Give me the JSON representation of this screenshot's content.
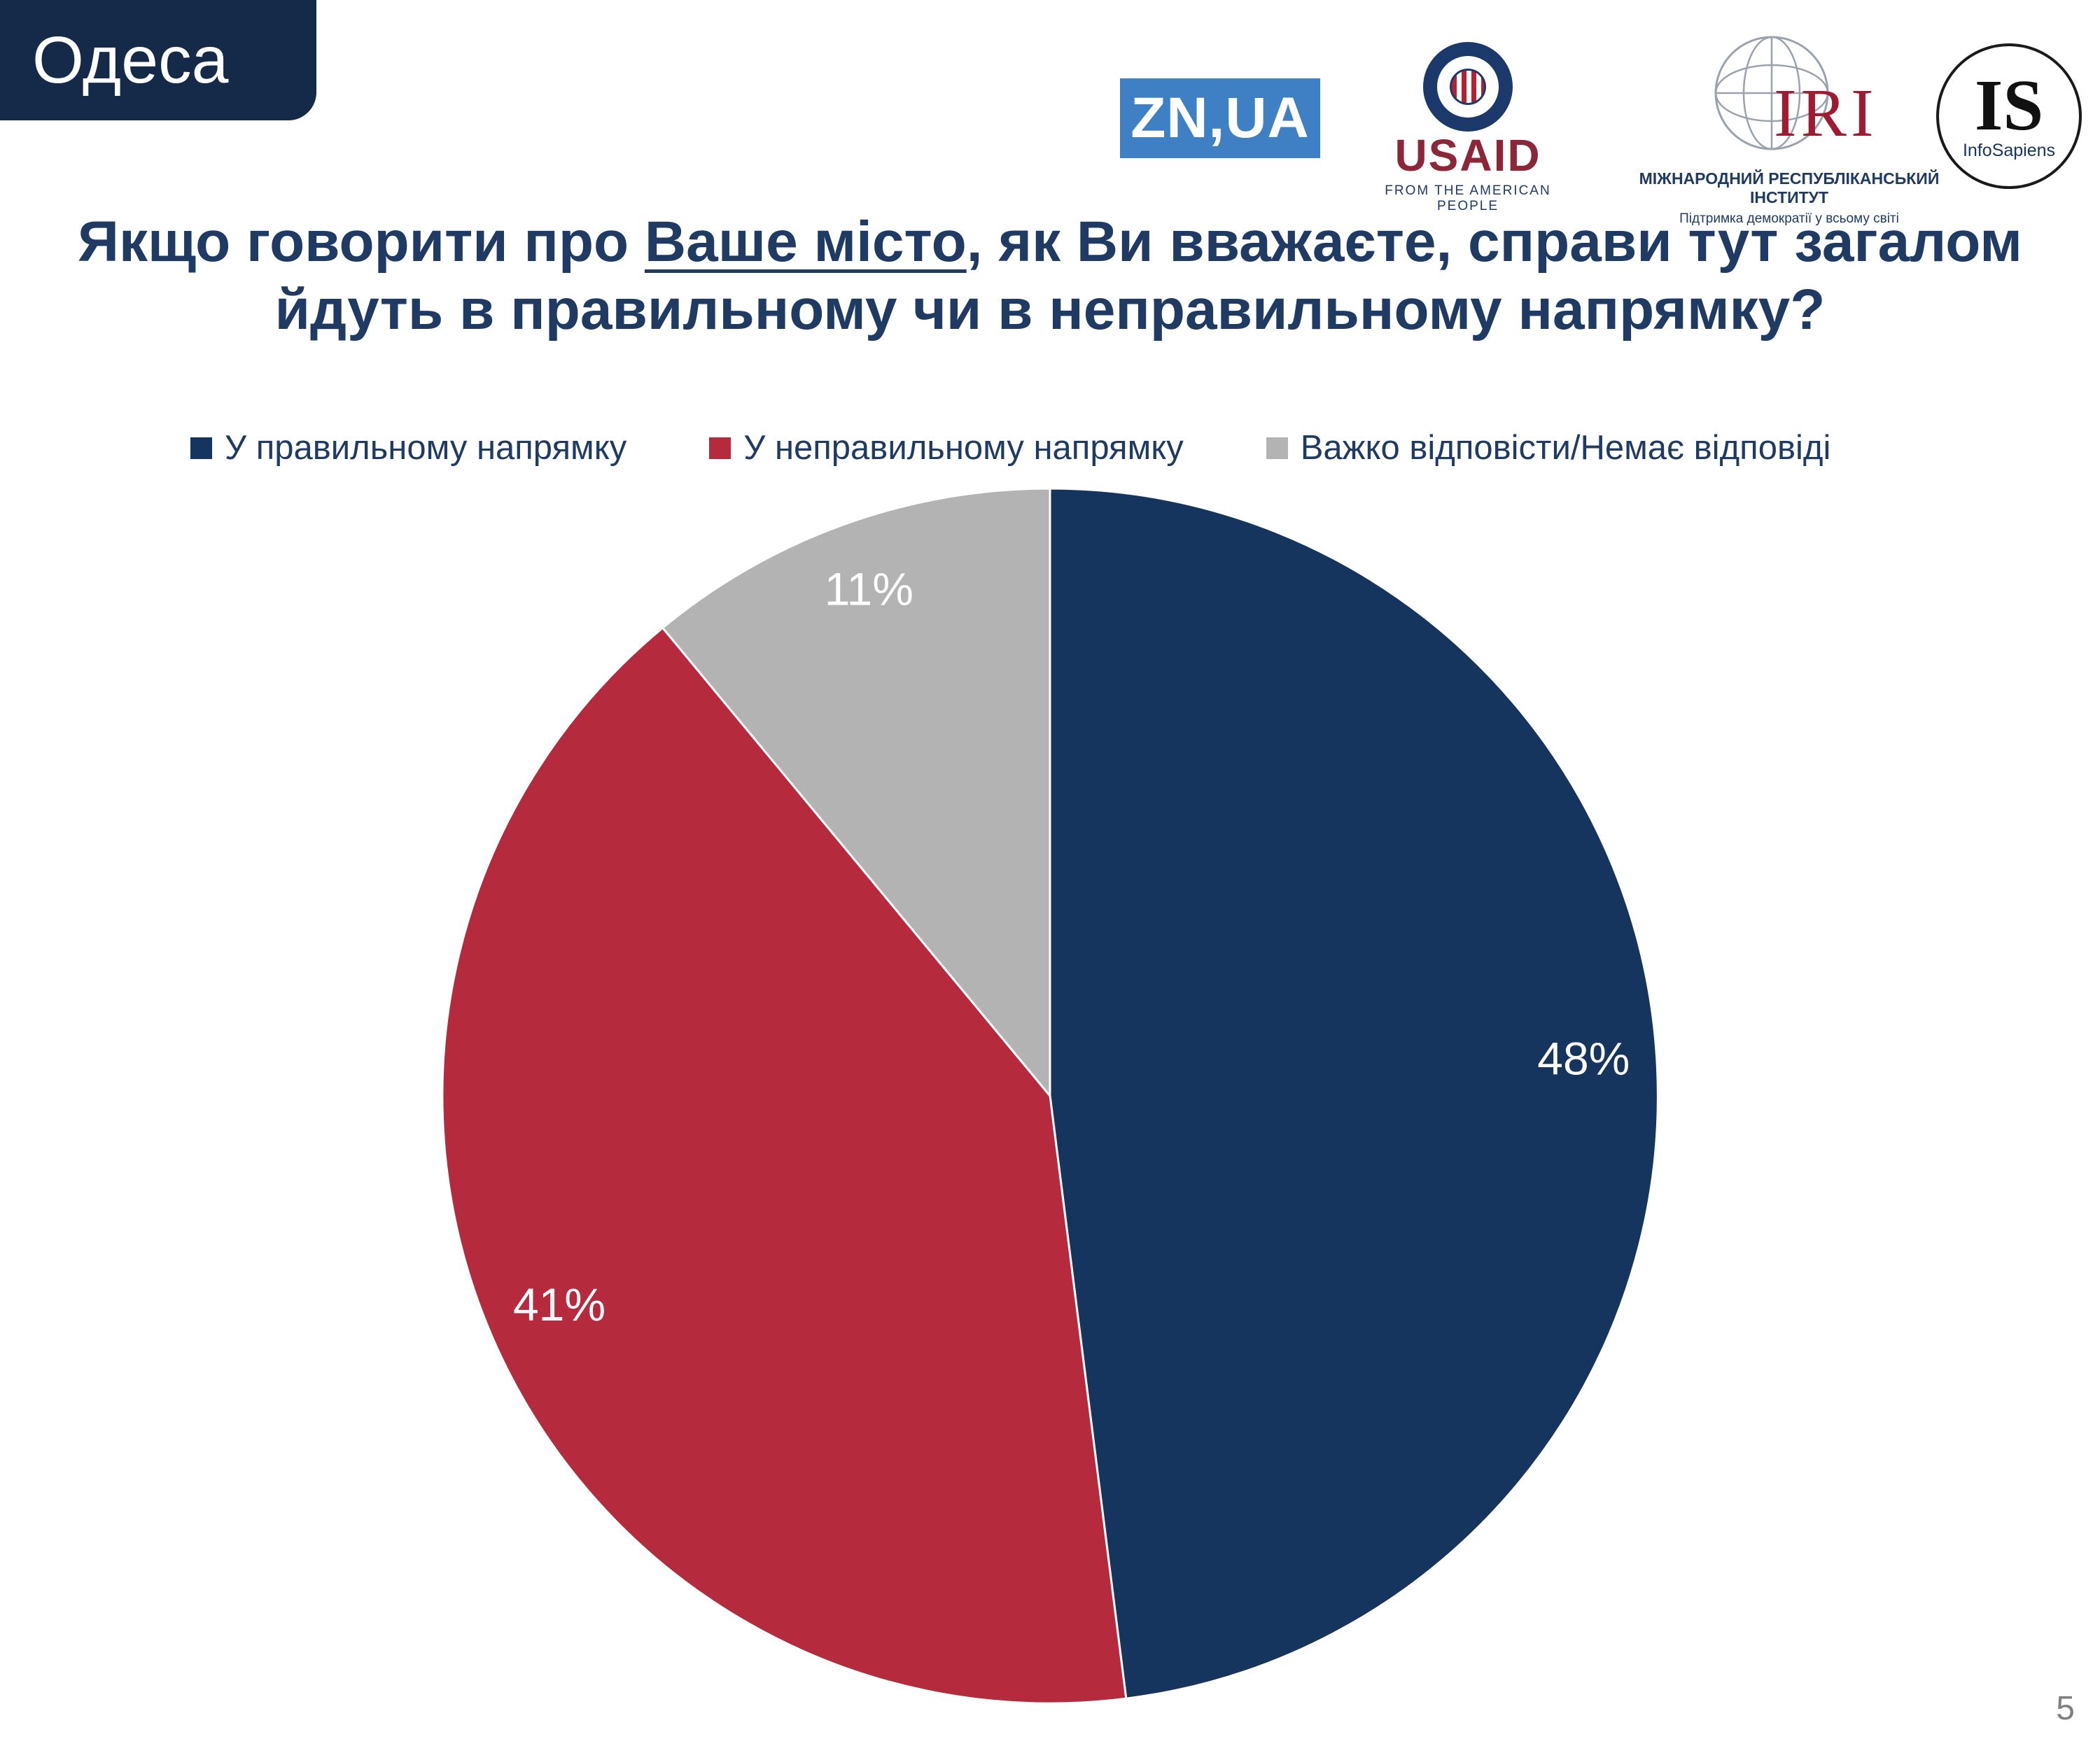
{
  "page": {
    "region_label": "Одеса",
    "page_number": "5"
  },
  "logos": {
    "znua": "ZN,UA",
    "usaid": {
      "name": "USAID",
      "tagline": "FROM THE AMERICAN PEOPLE"
    },
    "iri": {
      "name": "IRI",
      "line1": "МІЖНАРОДНИЙ РЕСПУБЛІКАНСЬКИЙ ІНСТИТУТ",
      "line2": "Підтримка демократії у всьому світі"
    },
    "is": {
      "abbr": "IS",
      "name": "InfoSapiens"
    }
  },
  "title": {
    "part1": "Якщо говорити про ",
    "underlined": "Ваше місто",
    "part2": ", як Ви вважаєте, справи тут загалом йдуть в правильному чи в неправильному напрямку?"
  },
  "chart_data": {
    "type": "pie",
    "unit": "%",
    "start_angle_deg": 0,
    "direction": "clockwise",
    "label_color": "#ffffff",
    "legend_position": "top",
    "slices": [
      {
        "label": "У правильному напрямку",
        "value": 48,
        "value_label": "48%",
        "color": "#16355e"
      },
      {
        "label": "У неправильному напрямку",
        "value": 41,
        "value_label": "41%",
        "color": "#b52a3c"
      },
      {
        "label": "Важко відповісти/Немає відповіді",
        "value": 11,
        "value_label": "11%",
        "color": "#b3b3b3"
      }
    ]
  }
}
